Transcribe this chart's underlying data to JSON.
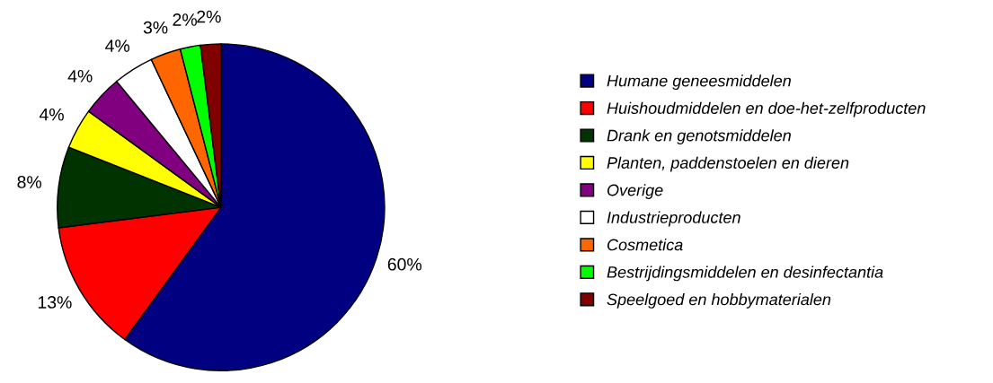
{
  "chart_data": {
    "type": "pie",
    "categories": [
      "Humane geneesmiddelen",
      "Huishoudmiddelen en doe-het-zelfproducten",
      "Drank en genotsmiddelen",
      "Planten, paddenstoelen en dieren",
      "Overige",
      "Industrieproducten",
      "Cosmetica",
      "Bestrijdingsmiddelen en desinfectantia",
      "Speelgoed en hobbymaterialen"
    ],
    "values": [
      60,
      13,
      8,
      4,
      4,
      4,
      3,
      2,
      2
    ],
    "value_labels": [
      "60%",
      "13%",
      "8%",
      "4%",
      "4%",
      "4%",
      "3%",
      "2%",
      "2%"
    ],
    "colors": [
      "#000080",
      "#ff0000",
      "#003300",
      "#ffff00",
      "#800080",
      "#ffffff",
      "#ff6600",
      "#00ff00",
      "#800000"
    ],
    "legend": "right"
  }
}
